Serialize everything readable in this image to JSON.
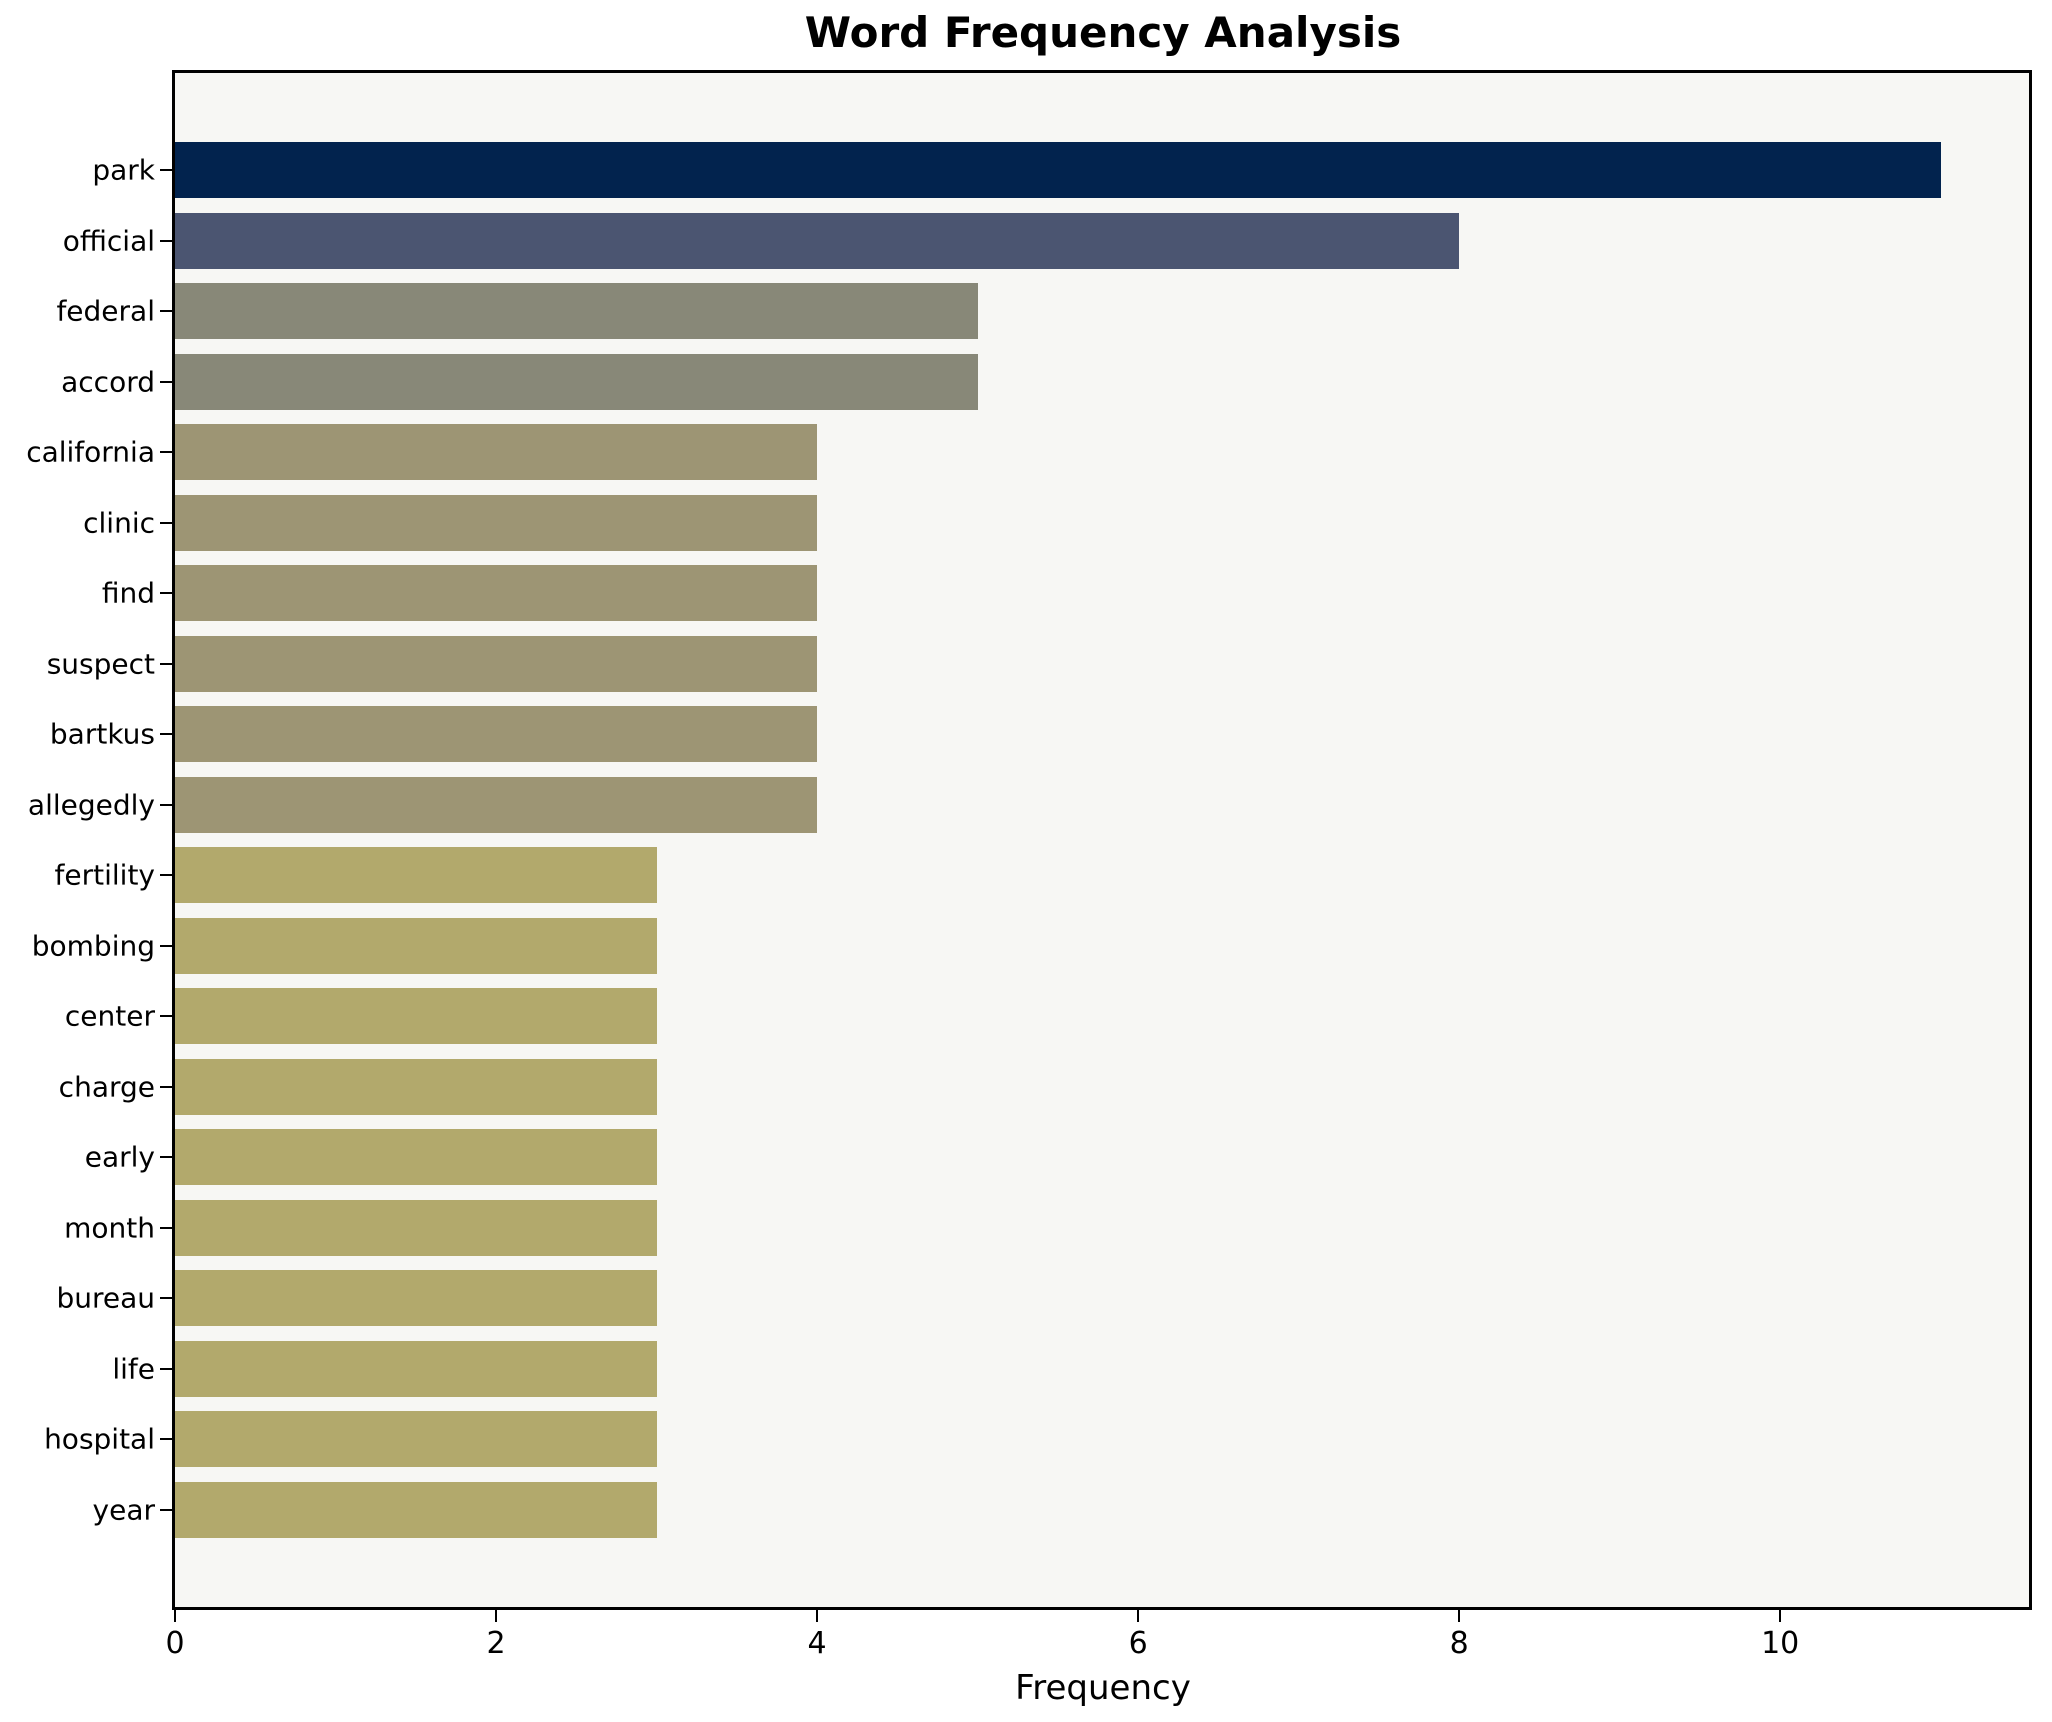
{
  "chart_data": {
    "type": "bar",
    "orientation": "horizontal",
    "title": "Word Frequency Analysis",
    "xlabel": "Frequency",
    "ylabel": "",
    "categories": [
      "park",
      "official",
      "federal",
      "accord",
      "california",
      "clinic",
      "find",
      "suspect",
      "bartkus",
      "allegedly",
      "fertility",
      "bombing",
      "center",
      "charge",
      "early",
      "month",
      "bureau",
      "life",
      "hospital",
      "year"
    ],
    "values": [
      11,
      8,
      5,
      5,
      4,
      4,
      4,
      4,
      4,
      4,
      3,
      3,
      3,
      3,
      3,
      3,
      3,
      3,
      3,
      3
    ],
    "bar_colors": [
      "#02234e",
      "#4b5571",
      "#888878",
      "#888878",
      "#9d9574",
      "#9d9574",
      "#9d9574",
      "#9d9574",
      "#9d9574",
      "#9d9574",
      "#b2a96c",
      "#b2a96c",
      "#b2a96c",
      "#b2a96c",
      "#b2a96c",
      "#b2a96c",
      "#b2a96c",
      "#b2a96c",
      "#b2a96c",
      "#b2a96c"
    ],
    "xlim": [
      0,
      11.55
    ],
    "xticks": [
      0,
      2,
      4,
      6,
      8,
      10
    ],
    "grid": "off",
    "legend": "none",
    "plot_background": "#f7f7f4",
    "spine_color": "#000000"
  }
}
